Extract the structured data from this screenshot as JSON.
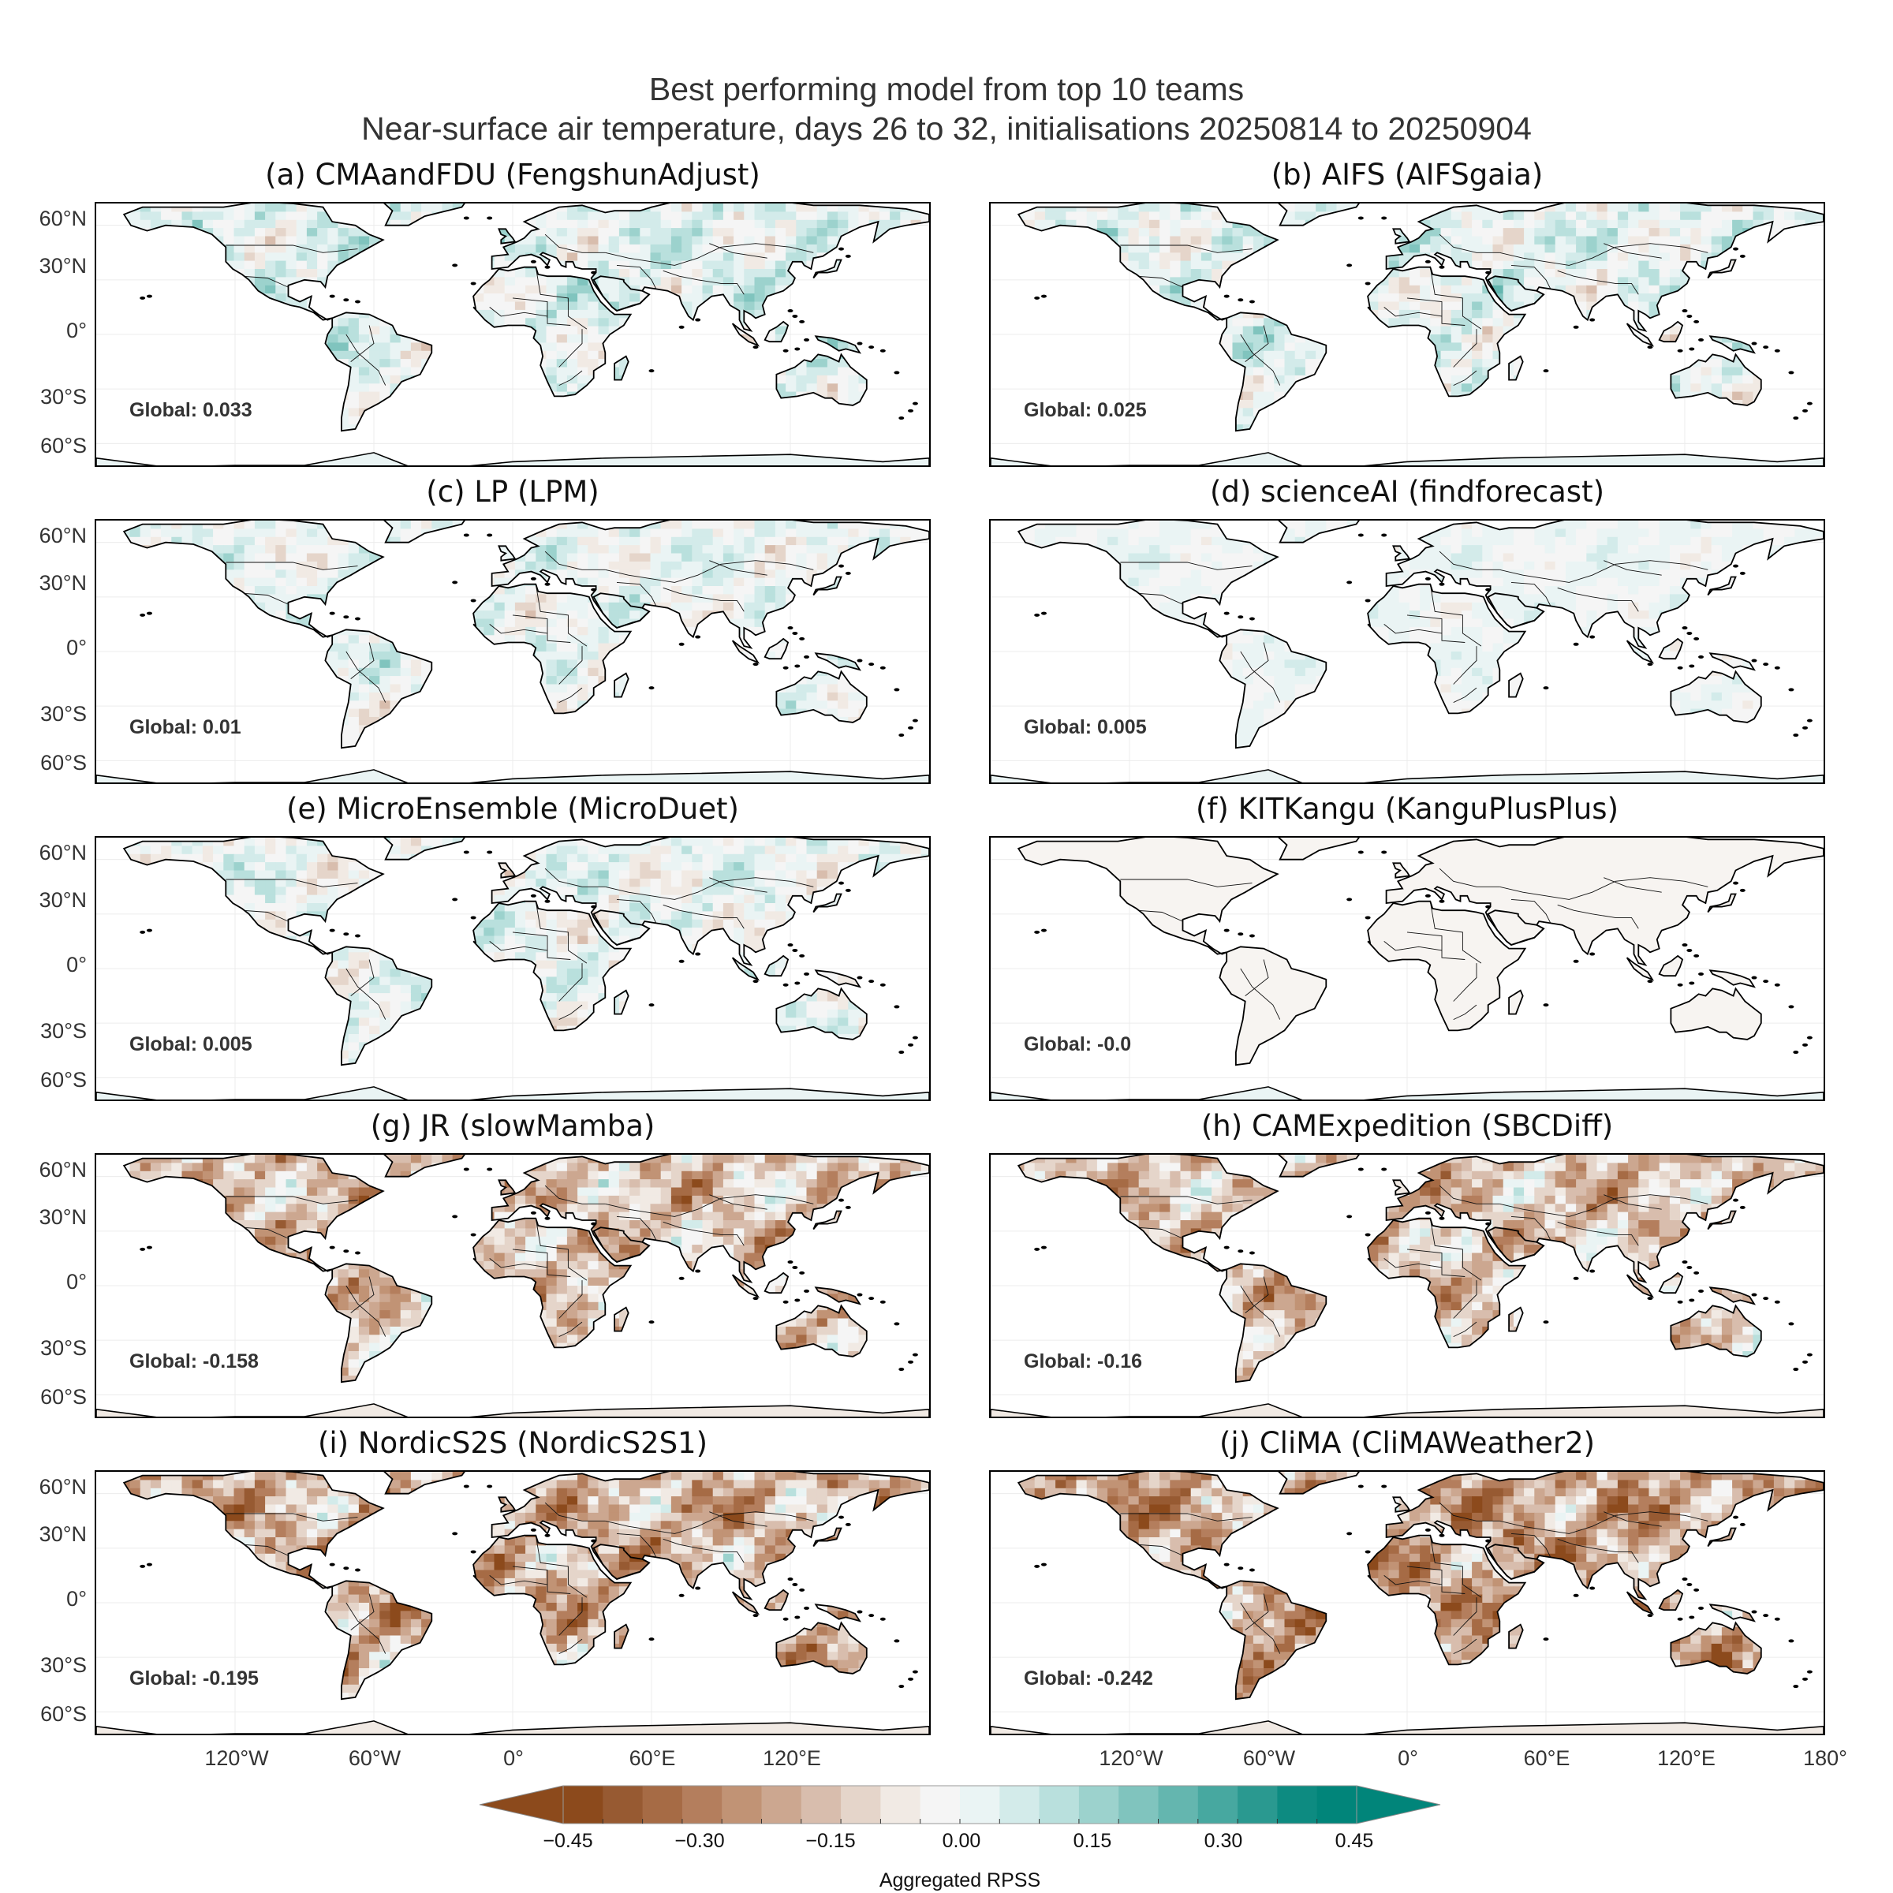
{
  "title": {
    "line1": "Best performing model from top 10 teams",
    "line2": "Near-surface air temperature, days 26 to 32, initialisations 20250814 to 20250904"
  },
  "colors": {
    "negative_extreme": "#8c4a1c",
    "neutral": "#f5f5f5",
    "positive_extreme": "#01857a",
    "land_outline": "#000000",
    "ocean": "#ffffff"
  },
  "panels": [
    {
      "title": "(a) CMAandFDU (FengshunAdjust)",
      "global": "Global: 0.033",
      "score": 0.033,
      "pattern_strength": 0.6
    },
    {
      "title": "(b) AIFS (AIFSgaia)",
      "global": "Global: 0.025",
      "score": 0.025,
      "pattern_strength": 0.6
    },
    {
      "title": "(c) LP (LPM)",
      "global": "Global: 0.01",
      "score": 0.01,
      "pattern_strength": 0.5
    },
    {
      "title": "(d) scienceAI (findforecast)",
      "global": "Global: 0.005",
      "score": 0.005,
      "pattern_strength": 0.25
    },
    {
      "title": "(e) MicroEnsemble (MicroDuet)",
      "global": "Global: 0.005",
      "score": 0.005,
      "pattern_strength": 0.55
    },
    {
      "title": "(f) KITKangu (KanguPlusPlus)",
      "global": "Global: -0.0",
      "score": 0.0,
      "pattern_strength": 0.0
    },
    {
      "title": "(g) JR (slowMamba)",
      "global": "Global: -0.158",
      "score": -0.158,
      "pattern_strength": 0.9
    },
    {
      "title": "(h) CAMExpedition (SBCDiff)",
      "global": "Global: -0.16",
      "score": -0.16,
      "pattern_strength": 0.9
    },
    {
      "title": "(i) NordicS2S (NordicS2S1)",
      "global": "Global: -0.195",
      "score": -0.195,
      "pattern_strength": 1.0
    },
    {
      "title": "(j) CliMA (CliMAWeather2)",
      "global": "Global: -0.242",
      "score": -0.242,
      "pattern_strength": 1.0
    }
  ],
  "lat_ticks": [
    "60°N",
    "30°N",
    "0°",
    "30°S",
    "60°S"
  ],
  "lon_ticks_left": [
    "120°W",
    "60°W",
    "0°",
    "60°E",
    "120°E"
  ],
  "lon_ticks_right": [
    "120°W",
    "60°W",
    "0°",
    "60°E",
    "120°E",
    "180°"
  ],
  "colorbar": {
    "label": "Aggregated RPSS",
    "min": -0.5,
    "max": 0.5,
    "step": 0.05,
    "tick_labels": [
      "−0.45",
      "−0.30",
      "−0.15",
      "0.00",
      "0.15",
      "0.30",
      "0.45"
    ],
    "extend": "both",
    "levels": [
      "#8c4a1c",
      "#975a32",
      "#a66b45",
      "#b47e5d",
      "#c19375",
      "#cca790",
      "#d8bdad",
      "#e5d5ca",
      "#f1eae4",
      "#f5f5f5",
      "#eaf4f4",
      "#d3ebea",
      "#b9e0dd",
      "#9cd2cd",
      "#80c4be",
      "#64b6af",
      "#47a8a0",
      "#2a9990",
      "#0d8b81",
      "#01857a"
    ]
  }
}
